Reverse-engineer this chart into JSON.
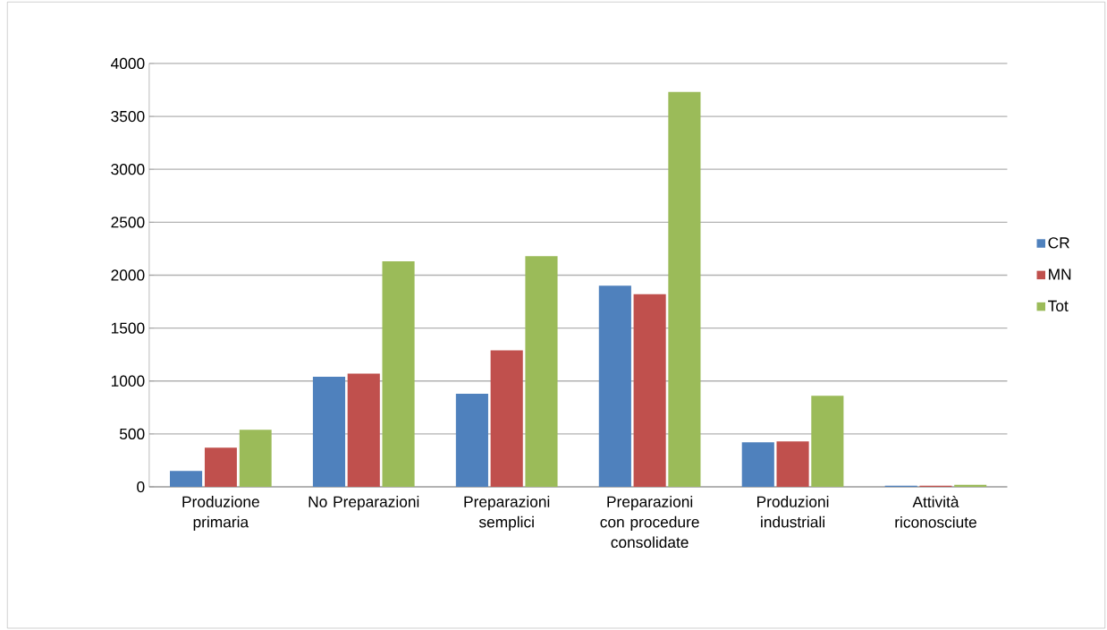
{
  "chart_data": {
    "type": "bar",
    "categories": [
      "Produzione primaria",
      "No Preparazioni",
      "Preparazioni semplici",
      "Preparazioni con procedure consolidate",
      "Produzioni industriali",
      "Attività riconosciute"
    ],
    "series": [
      {
        "name": "CR",
        "color": "#4f81bd",
        "values": [
          150,
          1040,
          880,
          1900,
          420,
          10
        ]
      },
      {
        "name": "MN",
        "color": "#c0504d",
        "values": [
          370,
          1070,
          1290,
          1820,
          430,
          10
        ]
      },
      {
        "name": "Tot",
        "color": "#9bbb59",
        "values": [
          540,
          2130,
          2180,
          3730,
          860,
          20
        ]
      }
    ],
    "ylim": [
      0,
      4000
    ],
    "yticks": [
      0,
      500,
      1000,
      1500,
      2000,
      2500,
      3000,
      3500,
      4000
    ],
    "grid": "y",
    "legend": "right"
  }
}
